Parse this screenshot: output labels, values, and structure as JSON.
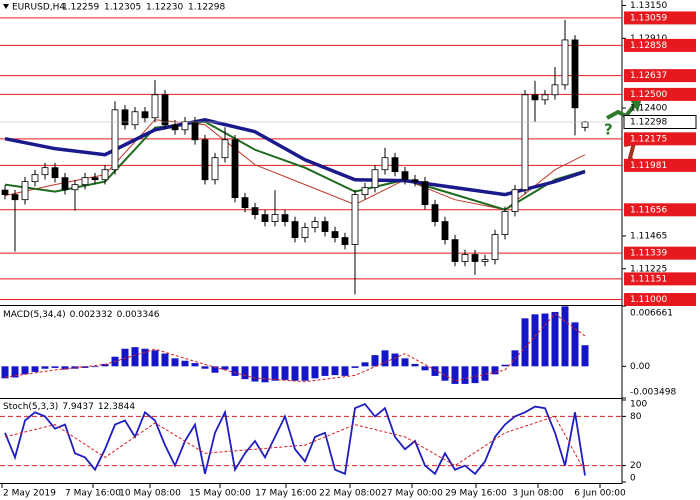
{
  "chart_data": {
    "type": "candlestick",
    "symbol": "EURUSD,H4",
    "last_candle_labels": [
      "1.12259",
      "1.12305",
      "1.12230",
      "1.12298"
    ],
    "candles": [
      [
        1.118,
        1.11835,
        1.11732,
        1.11767
      ],
      [
        1.11767,
        1.11802,
        1.1135,
        1.1173
      ],
      [
        1.1173,
        1.11897,
        1.11695,
        1.11862
      ],
      [
        1.11862,
        1.11948,
        1.11827,
        1.11913
      ],
      [
        1.11913,
        1.11999,
        1.11878,
        1.11964
      ],
      [
        1.11964,
        1.11999,
        1.11856,
        1.11891
      ],
      [
        1.11891,
        1.11926,
        1.11768,
        1.11803
      ],
      [
        1.11803,
        1.11875,
        1.1165,
        1.1184
      ],
      [
        1.1184,
        1.11926,
        1.11805,
        1.11891
      ],
      [
        1.11891,
        1.11926,
        1.11841,
        1.11876
      ],
      [
        1.11876,
        1.11984,
        1.11841,
        1.11949
      ],
      [
        1.11949,
        1.1245,
        1.11914,
        1.12387
      ],
      [
        1.12387,
        1.12422,
        1.12243,
        1.12278
      ],
      [
        1.12278,
        1.12408,
        1.12243,
        1.12373
      ],
      [
        1.12373,
        1.12408,
        1.12294,
        1.12329
      ],
      [
        1.12329,
        1.12606,
        1.12294,
        1.12497
      ],
      [
        1.12497,
        1.12532,
        1.12243,
        1.12278
      ],
      [
        1.12278,
        1.12313,
        1.12206,
        1.12241
      ],
      [
        1.12241,
        1.12335,
        1.12206,
        1.123
      ],
      [
        1.123,
        1.12335,
        1.12133,
        1.12168
      ],
      [
        1.12168,
        1.12203,
        1.11841,
        1.11876
      ],
      [
        1.11876,
        1.12072,
        1.11841,
        1.12037
      ],
      [
        1.12037,
        1.1226,
        1.12002,
        1.12168
      ],
      [
        1.12168,
        1.12203,
        1.1171,
        1.11745
      ],
      [
        1.11745,
        1.1178,
        1.11637,
        1.11672
      ],
      [
        1.11672,
        1.11707,
        1.11586,
        1.11621
      ],
      [
        1.11621,
        1.11656,
        1.11535,
        1.1157
      ],
      [
        1.1157,
        1.118,
        1.11535,
        1.11621
      ],
      [
        1.11621,
        1.11656,
        1.11535,
        1.1157
      ],
      [
        1.1157,
        1.11605,
        1.11418,
        1.11453
      ],
      [
        1.11453,
        1.11561,
        1.11418,
        1.11526
      ],
      [
        1.11526,
        1.11605,
        1.11491,
        1.1157
      ],
      [
        1.1157,
        1.11605,
        1.11462,
        1.11497
      ],
      [
        1.11497,
        1.11532,
        1.11418,
        1.11453
      ],
      [
        1.11453,
        1.11488,
        1.11367,
        1.11402
      ],
      [
        1.11402,
        1.11802,
        1.11037,
        1.11767
      ],
      [
        1.11767,
        1.11853,
        1.11732,
        1.11818
      ],
      [
        1.11818,
        1.11984,
        1.11783,
        1.11949
      ],
      [
        1.11949,
        1.1211,
        1.11914,
        1.12037
      ],
      [
        1.12037,
        1.12072,
        1.119,
        1.11935
      ],
      [
        1.11935,
        1.1197,
        1.11841,
        1.11876
      ],
      [
        1.11876,
        1.11911,
        1.11827,
        1.11862
      ],
      [
        1.11862,
        1.11897,
        1.11659,
        1.11694
      ],
      [
        1.11694,
        1.11729,
        1.11535,
        1.1157
      ],
      [
        1.1157,
        1.11605,
        1.11403,
        1.11438
      ],
      [
        1.11438,
        1.11473,
        1.11243,
        1.11278
      ],
      [
        1.11278,
        1.11364,
        1.11243,
        1.11329
      ],
      [
        1.11329,
        1.11364,
        1.1118,
        1.11278
      ],
      [
        1.11278,
        1.11327,
        1.11243,
        1.11292
      ],
      [
        1.11292,
        1.1151,
        1.11257,
        1.11475
      ],
      [
        1.11475,
        1.11678,
        1.1144,
        1.11643
      ],
      [
        1.11643,
        1.11838,
        1.11608,
        1.11803
      ],
      [
        1.11803,
        1.12532,
        1.11768,
        1.12497
      ],
      [
        1.12497,
        1.126,
        1.123,
        1.1246
      ],
      [
        1.1246,
        1.12532,
        1.12425,
        1.12497
      ],
      [
        1.12497,
        1.127,
        1.12462,
        1.1257
      ],
      [
        1.1257,
        1.13044,
        1.12535,
        1.12898
      ],
      [
        1.12898,
        1.12933,
        1.122,
        1.12402
      ],
      [
        1.12259,
        1.12305,
        1.1223,
        1.12298
      ]
    ],
    "ylim": [
      1.1096,
      1.1319
    ],
    "yticks": [
      {
        "value": 1.1315,
        "label": "1.13150"
      },
      {
        "value": 1.1291,
        "label": "1.12910"
      },
      {
        "value": 1.124,
        "label": "1.12400"
      },
      1.11465,
      1.11225
    ],
    "levels": [
      1.13059,
      1.12858,
      1.12637,
      {
        "value": 1.125,
        "label": "1.12500"
      },
      1.12175,
      1.11981,
      1.11656,
      1.11339,
      1.11151,
      {
        "value": 1.11,
        "label": "1.11000"
      }
    ],
    "level_color": "#e8191e",
    "moving_averages": {
      "x": [
        0,
        5,
        10,
        15,
        20,
        25,
        30,
        35,
        40,
        45,
        50,
        55,
        58
      ],
      "series": [
        {
          "color": "#c0392b",
          "width": 1,
          "values": [
            1.1176,
            1.1184,
            1.11913,
            1.12314,
            1.12278,
            1.11986,
            1.1184,
            1.11694,
            1.11876,
            1.1173,
            1.11657,
            1.11949,
            1.12059
          ]
        },
        {
          "color": "#1e6b1e",
          "width": 2,
          "values": [
            1.1184,
            1.11789,
            1.11862,
            1.12256,
            1.123,
            1.12095,
            1.11964,
            1.11789,
            1.11876,
            1.11767,
            1.11657,
            1.11876,
            1.11942
          ]
        },
        {
          "color": "#1a1a8c",
          "width": 3.5,
          "values": [
            1.12176,
            1.12103,
            1.12059,
            1.12241,
            1.12314,
            1.12227,
            1.12022,
            1.11876,
            1.11869,
            1.11818,
            1.11767,
            1.11862,
            1.11935
          ]
        }
      ]
    },
    "annotation": "?",
    "x_labels": [
      "2 May 2019",
      "7 May 16:00",
      "10 May 08:00",
      "15 May 00:00",
      "17 May 16:00",
      "22 May 08:00",
      "27 May 00:00",
      "29 May 16:00",
      "3 Jun 08:00",
      "6 Jun 00:00"
    ],
    "macd": {
      "title": "MACD(5,34,4)",
      "color": "#1515c8",
      "ylim": [
        -0.003498,
        0.006661
      ],
      "yticks": [
        0.006661,
        {
          "value": 0,
          "label": "0.00"
        },
        -0.003498
      ],
      "histogram": [
        -0.001325,
        -0.001236,
        -0.000883,
        -0.000618,
        -0.000265,
        -0.000177,
        -0.000353,
        -0.000265,
        -0.000177,
        -8.8e-05,
        0.000265,
        0.00106,
        0.001943,
        0.002119,
        0.001943,
        0.001766,
        0.001413,
        0.000883,
        0.000618,
        0.000353,
        -0.000265,
        -0.000706,
        -0.000353,
        -0.00106,
        -0.001413,
        -0.001678,
        -0.001766,
        -0.001589,
        -0.001501,
        -0.001589,
        -0.001589,
        -0.001325,
        -0.00106,
        -0.000971,
        -0.00106,
        -0.000177,
        0.000442,
        0.001236,
        0.001766,
        0.001413,
        0.000883,
        0.000265,
        -0.000442,
        -0.00106,
        -0.001589,
        -0.001943,
        -0.001943,
        -0.001854,
        -0.001589,
        -0.000883,
        0.000177,
        0.001766,
        0.005298,
        0.00574,
        0.005828,
        0.006004,
        0.006623,
        0.004857,
        0.002332
      ],
      "signal": {
        "color": "#d62020",
        "x": [
          0,
          5,
          10,
          15,
          20,
          25,
          30,
          35,
          40,
          45,
          50,
          55,
          58
        ],
        "values": [
          -0.0012,
          -0.0004,
          0.0002,
          0.0019,
          0.0002,
          -0.0013,
          -0.0017,
          -0.001,
          0.0014,
          -0.0016,
          -0.0004,
          0.0058,
          0.003346
        ]
      }
    },
    "stoch": {
      "title": "Stoch(5,3,3)",
      "ylim": [
        0,
        100
      ],
      "yticks": [
        100,
        80,
        20,
        0
      ],
      "level_lines": [
        80,
        20
      ],
      "main": {
        "color": "#1f1fbf",
        "values": [
          60,
          30,
          75,
          85,
          80,
          65,
          70,
          35,
          30,
          15,
          40,
          70,
          75,
          55,
          85,
          75,
          45,
          20,
          50,
          70,
          10,
          60,
          85,
          15,
          35,
          50,
          30,
          55,
          80,
          40,
          25,
          55,
          60,
          15,
          10,
          90,
          95,
          80,
          90,
          55,
          40,
          50,
          20,
          10,
          35,
          15,
          20,
          10,
          25,
          55,
          70,
          80,
          85,
          92,
          90,
          60,
          20,
          85,
          7.9437
        ]
      },
      "signal": {
        "color": "#d62020",
        "x": [
          0,
          5,
          10,
          15,
          20,
          25,
          30,
          35,
          40,
          45,
          50,
          55,
          58
        ],
        "values": [
          55,
          70,
          30,
          72,
          35,
          40,
          45,
          70,
          55,
          20,
          60,
          80,
          12.3844
        ]
      }
    }
  }
}
